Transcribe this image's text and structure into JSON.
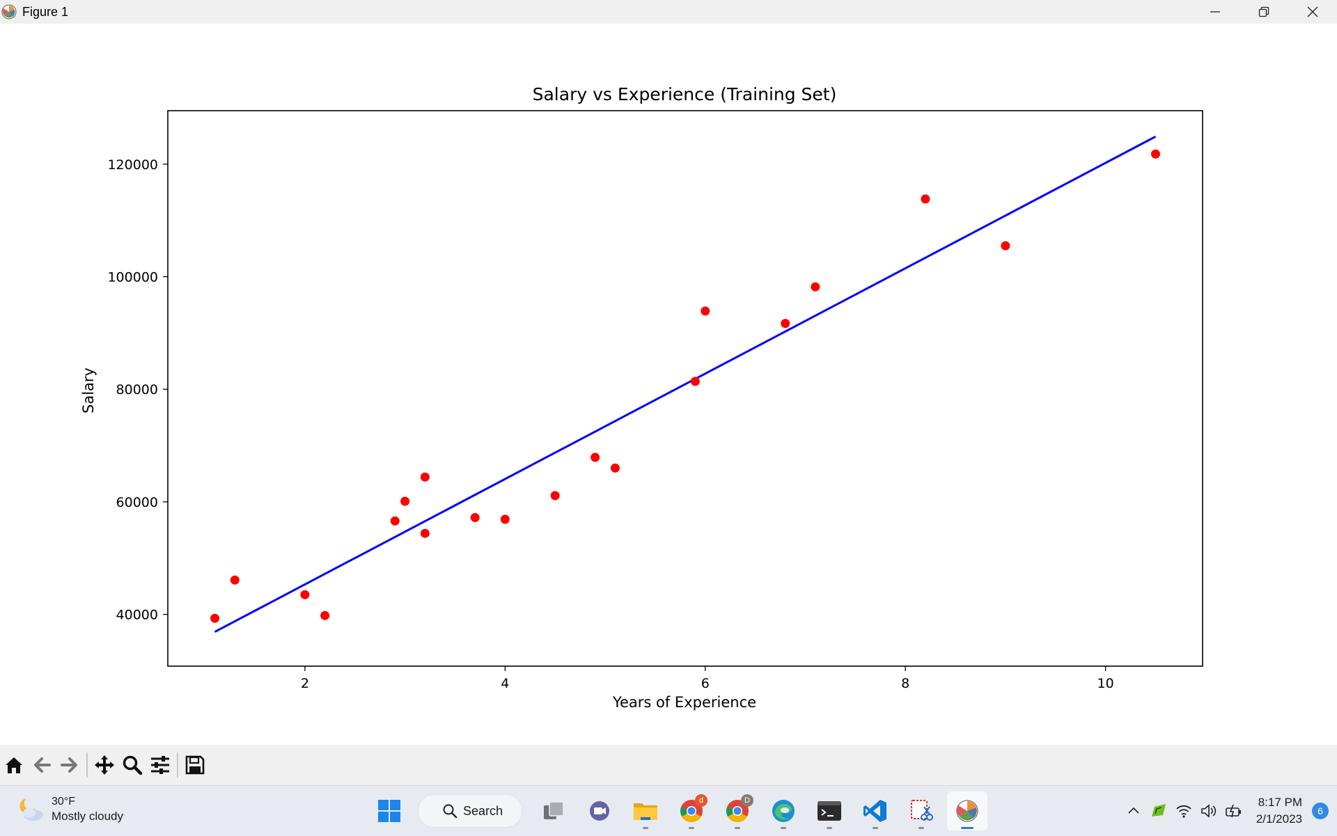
{
  "window": {
    "title": "Figure 1",
    "controls": [
      "minimize-icon",
      "restore-icon",
      "close-icon"
    ]
  },
  "chart_data": {
    "type": "scatter",
    "title": "Salary vs Experience (Training Set)",
    "xlabel": "Years of Experience",
    "ylabel": "Salary",
    "xlim": [
      0.63,
      10.97
    ],
    "ylim": [
      30800,
      129500
    ],
    "xticks": [
      2,
      4,
      6,
      8,
      10
    ],
    "yticks": [
      40000,
      60000,
      80000,
      100000,
      120000
    ],
    "grid": false,
    "series": [
      {
        "kind": "scatter",
        "color": "#ff0000",
        "x": [
          1.1,
          1.3,
          2.0,
          2.2,
          2.9,
          3.0,
          3.2,
          3.2,
          3.7,
          4.0,
          4.5,
          4.9,
          5.1,
          5.9,
          6.0,
          6.8,
          7.1,
          8.2,
          9.0,
          10.5
        ],
        "y": [
          39300,
          46100,
          43500,
          39800,
          56600,
          60100,
          64400,
          54400,
          57200,
          56900,
          61100,
          67900,
          66000,
          81400,
          93900,
          91700,
          98200,
          113800,
          105500,
          121800
        ]
      },
      {
        "kind": "line",
        "color": "#0000ff",
        "x": [
          1.1,
          10.5
        ],
        "y": [
          36900,
          124900
        ]
      }
    ]
  },
  "toolbar": {
    "buttons": [
      "home-icon",
      "back-icon",
      "forward-icon",
      "pan-icon",
      "zoom-icon",
      "configure-subplots-icon",
      "save-icon"
    ]
  },
  "taskbar": {
    "weather": {
      "temp": "30°F",
      "desc": "Mostly cloudy"
    },
    "search_label": "Search",
    "apps": [
      {
        "name": "task-view-icon"
      },
      {
        "name": "teams-icon"
      },
      {
        "name": "file-explorer-icon"
      },
      {
        "name": "chrome-icon",
        "badge": "d"
      },
      {
        "name": "chrome-profile-icon",
        "badge": "D"
      },
      {
        "name": "edge-icon"
      },
      {
        "name": "terminal-icon"
      },
      {
        "name": "vscode-icon"
      },
      {
        "name": "snipping-tool-icon"
      },
      {
        "name": "python-figure-icon"
      }
    ],
    "clock": {
      "time": "8:17 PM",
      "date": "2/1/2023"
    },
    "notification_count": "6"
  }
}
